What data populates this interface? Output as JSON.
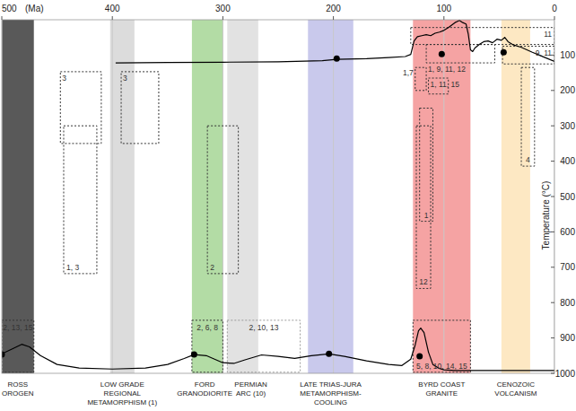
{
  "chart_data": {
    "type": "timeline",
    "x_label": "(Ma)",
    "y_label": "Temperature (°C)",
    "xlim": [
      500,
      0
    ],
    "xticks": [
      500,
      400,
      300,
      200,
      100,
      0
    ],
    "ylim": [
      0,
      1000
    ],
    "yticks": [
      100,
      200,
      300,
      400,
      500,
      600,
      700,
      800,
      900,
      1000
    ],
    "grid": "x",
    "bands": [
      {
        "label": [
          "ROSS",
          "OROGEN"
        ],
        "start": 500,
        "end": 471,
        "color": "#595959"
      },
      {
        "label": [
          "LOW GRADE",
          "REGIONAL",
          "METAMORPHISM (1)"
        ],
        "start": 402,
        "end": 380,
        "color": "#dcdcdc"
      },
      {
        "label": [
          "FORD",
          "GRANODIORITE"
        ],
        "start": 328,
        "end": 300,
        "color": "#b3dca5"
      },
      {
        "label": [
          "PERMIAN",
          "ARC (10)"
        ],
        "start": 296,
        "end": 268,
        "color": "#e2e2e2"
      },
      {
        "label": [
          "LATE TRIAS-JURA",
          "METAMORPHISM-",
          "COOLING"
        ],
        "start": 223,
        "end": 182,
        "color": "#c9c9ec"
      },
      {
        "label": [
          "BYRD COAST",
          "GRANITE"
        ],
        "start": 128,
        "end": 76,
        "color": "#f5a3a3"
      },
      {
        "label": [
          "CENOZOIC",
          "VOLCANISM"
        ],
        "start": 48,
        "end": 22,
        "color": "#fde8c3"
      }
    ],
    "boxes": [
      {
        "label": "3",
        "x": [
          447,
          410
        ],
        "y": [
          147,
          350
        ],
        "color": "#333333"
      },
      {
        "label": "1, 3",
        "x": [
          444,
          414
        ],
        "y": [
          300,
          718
        ],
        "color": "#333333"
      },
      {
        "label": "3",
        "x": [
          392,
          358
        ],
        "y": [
          147,
          350
        ],
        "color": "#333333"
      },
      {
        "label": "2",
        "x": [
          314,
          286
        ],
        "y": [
          300,
          718
        ],
        "color": "#333333"
      },
      {
        "label": "2, 13, 15",
        "x": [
          500,
          471
        ],
        "y": [
          850,
          997
        ],
        "color": "#333333"
      },
      {
        "label": "2, 6, 8",
        "x": [
          328,
          300
        ],
        "y": [
          850,
          997
        ],
        "color": "#333333"
      },
      {
        "label": "2, 10, 13",
        "x": [
          296,
          230
        ],
        "y": [
          850,
          997
        ],
        "color": "#999999"
      },
      {
        "label": "5, 8, 10, 14, 15",
        "x": [
          128,
          76
        ],
        "y": [
          850,
          997
        ],
        "color": "#333333"
      },
      {
        "label": "1,7",
        "x": [
          126,
          116
        ],
        "y": [
          135,
          200
        ],
        "color": "#333333"
      },
      {
        "label": "1, 11, 15",
        "x": [
          114,
          96
        ],
        "y": [
          165,
          210
        ],
        "color": "#333333"
      },
      {
        "label": "1",
        "x": [
          122,
          110
        ],
        "y": [
          250,
          570
        ],
        "color": "#333333"
      },
      {
        "label": "12",
        "x": [
          125,
          112
        ],
        "y": [
          300,
          760
        ],
        "color": "#333333"
      },
      {
        "label": "11",
        "x": [
          130,
          0
        ],
        "y": [
          22,
          70
        ],
        "color": "#333333"
      },
      {
        "label": "1, 9, 11, 12",
        "x": [
          116,
          54
        ],
        "y": [
          70,
          122
        ],
        "color": "#333333"
      },
      {
        "label": "9, 11",
        "x": [
          47,
          0
        ],
        "y": [
          75,
          125
        ],
        "color": "#333333"
      },
      {
        "label": "4",
        "x": [
          30,
          18
        ],
        "y": [
          135,
          414
        ],
        "color": "#333333"
      }
    ],
    "curves": [
      {
        "color": "#000000",
        "x": [
          397,
          350,
          300,
          250,
          210,
          197,
          170,
          150,
          135,
          130,
          127,
          124,
          120,
          116,
          112,
          108,
          104,
          100,
          96,
          93,
          90,
          88,
          86,
          83,
          80,
          78,
          76,
          74,
          72,
          68,
          64,
          60,
          56,
          52,
          48,
          45,
          42,
          38,
          30,
          20,
          10,
          0
        ],
        "values": [
          122,
          121,
          120,
          119,
          116,
          112,
          110,
          107,
          104,
          98,
          60,
          48,
          45,
          42,
          45,
          38,
          35,
          30,
          22,
          15,
          8,
          5,
          2,
          8,
          12,
          40,
          85,
          90,
          80,
          70,
          62,
          60,
          65,
          55,
          58,
          50,
          62,
          70,
          78,
          92,
          105,
          118
        ]
      },
      {
        "color": "#000000",
        "x": [
          500,
          490,
          482,
          475,
          465,
          450,
          430,
          400,
          370,
          350,
          335,
          326,
          315,
          300,
          290,
          280,
          265,
          250,
          235,
          220,
          204,
          190,
          170,
          150,
          138,
          130,
          126,
          123,
          121,
          118,
          114,
          110,
          105,
          100,
          90,
          50,
          0
        ],
        "values": [
          945,
          930,
          918,
          925,
          950,
          975,
          985,
          988,
          985,
          975,
          958,
          947,
          950,
          970,
          972,
          962,
          948,
          952,
          958,
          950,
          945,
          952,
          965,
          975,
          978,
          960,
          920,
          880,
          872,
          885,
          940,
          975,
          985,
          990,
          992,
          992,
          992
        ]
      }
    ],
    "points": {
      "color": "#000000",
      "marker": "circle",
      "x": [
        500,
        326,
        204,
        122,
        197,
        102,
        46
      ],
      "values": [
        947,
        947,
        945,
        952,
        110,
        97,
        92
      ]
    }
  }
}
